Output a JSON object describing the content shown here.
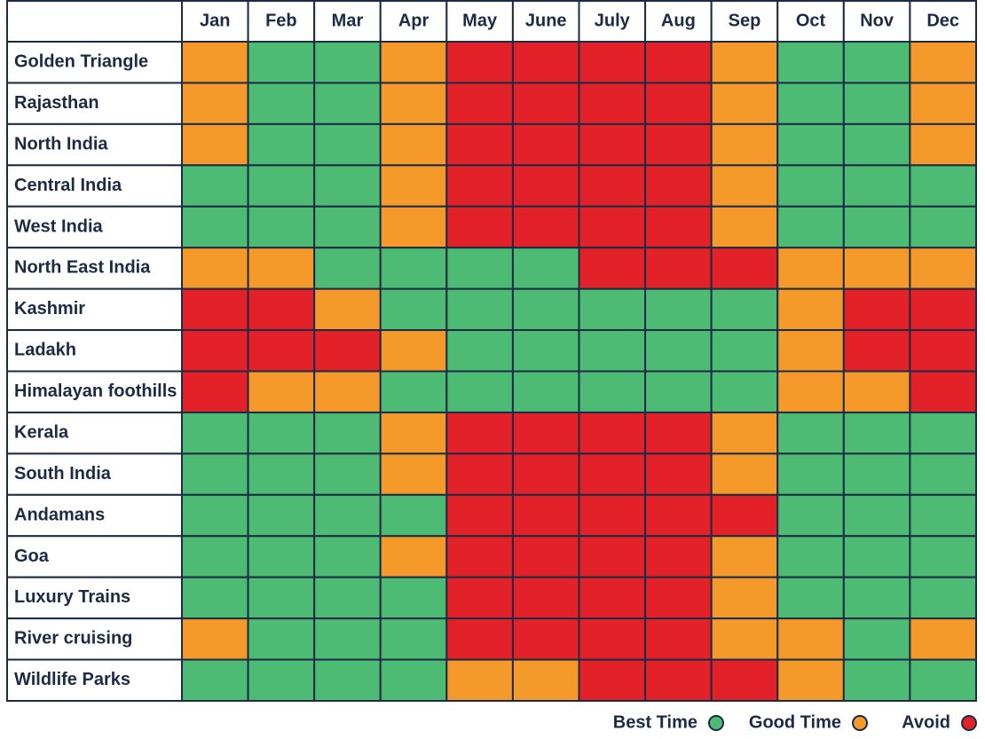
{
  "header": {
    "months": [
      "Jan",
      "Feb",
      "Mar",
      "Apr",
      "May",
      "June",
      "July",
      "Aug",
      "Sep",
      "Oct",
      "Nov",
      "Dec"
    ]
  },
  "legend": {
    "items": [
      {
        "label": "Best Time",
        "color": "#4dbb73"
      },
      {
        "label": "Good Time",
        "color": "#f59a2a"
      },
      {
        "label": "Avoid",
        "color": "#e32129"
      }
    ]
  },
  "table": {
    "rows": [
      {
        "label": "Golden Triangle",
        "cells": [
          1,
          0,
          0,
          1,
          2,
          2,
          2,
          2,
          1,
          0,
          0,
          1
        ]
      },
      {
        "label": "Rajasthan",
        "cells": [
          1,
          0,
          0,
          1,
          2,
          2,
          2,
          2,
          1,
          0,
          0,
          1
        ]
      },
      {
        "label": "North India",
        "cells": [
          1,
          0,
          0,
          1,
          2,
          2,
          2,
          2,
          1,
          0,
          0,
          1
        ]
      },
      {
        "label": "Central India",
        "cells": [
          0,
          0,
          0,
          1,
          2,
          2,
          2,
          2,
          1,
          0,
          0,
          0
        ]
      },
      {
        "label": "West India",
        "cells": [
          0,
          0,
          0,
          1,
          2,
          2,
          2,
          2,
          1,
          0,
          0,
          0
        ]
      },
      {
        "label": "North East India",
        "cells": [
          1,
          1,
          0,
          0,
          0,
          0,
          2,
          2,
          2,
          1,
          1,
          1
        ]
      },
      {
        "label": "Kashmir",
        "cells": [
          2,
          2,
          1,
          0,
          0,
          0,
          0,
          0,
          0,
          1,
          2,
          2
        ]
      },
      {
        "label": "Ladakh",
        "cells": [
          2,
          2,
          2,
          1,
          0,
          0,
          0,
          0,
          0,
          1,
          2,
          2
        ]
      },
      {
        "label": "Himalayan foothills",
        "cells": [
          2,
          1,
          1,
          0,
          0,
          0,
          0,
          0,
          0,
          1,
          1,
          2
        ]
      },
      {
        "label": "Kerala",
        "cells": [
          0,
          0,
          0,
          1,
          2,
          2,
          2,
          2,
          1,
          0,
          0,
          0
        ]
      },
      {
        "label": "South India",
        "cells": [
          0,
          0,
          0,
          1,
          2,
          2,
          2,
          2,
          1,
          0,
          0,
          0
        ]
      },
      {
        "label": "Andamans",
        "cells": [
          0,
          0,
          0,
          0,
          2,
          2,
          2,
          2,
          2,
          0,
          0,
          0
        ]
      },
      {
        "label": "Goa",
        "cells": [
          0,
          0,
          0,
          1,
          2,
          2,
          2,
          2,
          1,
          0,
          0,
          0
        ]
      },
      {
        "label": "Luxury Trains",
        "cells": [
          0,
          0,
          0,
          0,
          2,
          2,
          2,
          2,
          1,
          0,
          0,
          0
        ]
      },
      {
        "label": "River cruising",
        "cells": [
          1,
          0,
          0,
          0,
          2,
          2,
          2,
          2,
          1,
          1,
          0,
          1
        ]
      },
      {
        "label": "Wildlife Parks",
        "cells": [
          0,
          0,
          0,
          0,
          1,
          1,
          2,
          2,
          2,
          1,
          0,
          0
        ]
      }
    ]
  }
}
